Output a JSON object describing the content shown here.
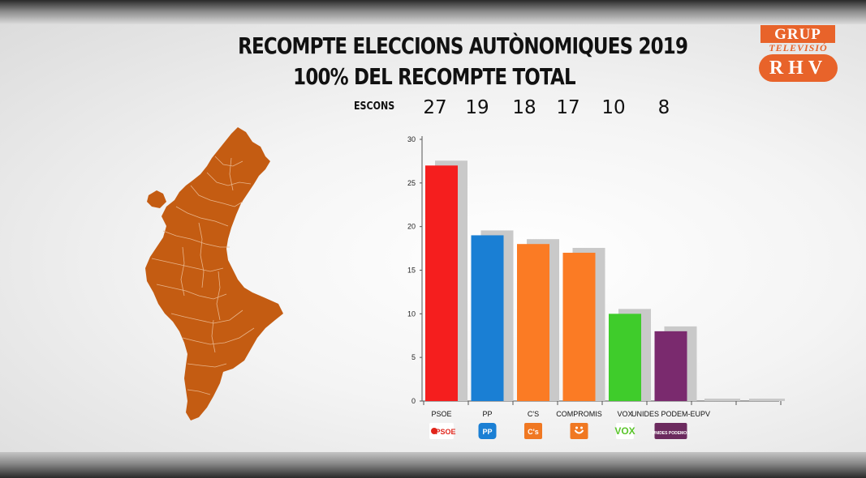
{
  "header": {
    "title_line1": "RECOMPTE ELECCIONS AUTÒNOMIQUES 2019",
    "title_line2": "100% DEL RECOMPTE TOTAL"
  },
  "logo": {
    "line1": "GRUP",
    "line2": "TELEVISIÓ",
    "line3": "RHV",
    "color": "#e8632a"
  },
  "seats_row": {
    "label": "ESCONS",
    "values": [
      "27",
      "19",
      "18",
      "17",
      "10",
      "8"
    ]
  },
  "map": {
    "region_color": "#c45c12",
    "border_color": "#e8b48a"
  },
  "chart_data": {
    "type": "bar",
    "categories": [
      "PSOE",
      "PP",
      "C'S",
      "COMPROMIS",
      "VOX",
      "UNIDES PODEM-EUPV"
    ],
    "values": [
      27,
      19,
      18,
      17,
      10,
      8
    ],
    "colors": [
      "#f51e1e",
      "#1a7fd4",
      "#fb7b24",
      "#fb7b24",
      "#3fcc2b",
      "#7a2a6e"
    ],
    "shadow_color": "#c9c9c9",
    "yticks": [
      0,
      5,
      10,
      15,
      20,
      25,
      30
    ],
    "ylim": [
      0,
      30
    ],
    "party_logos": [
      {
        "text": "PSOE",
        "icon": "psoe-rose-icon",
        "bg": "#ffffff",
        "fg": "#e1251b"
      },
      {
        "text": "PP",
        "icon": "pp-logo-icon",
        "bg": "#1a7fd4",
        "fg": "#ffffff"
      },
      {
        "text": "C's",
        "icon": "cs-logo-icon",
        "bg": "#f07822",
        "fg": "#ffffff"
      },
      {
        "text": "",
        "icon": "compromis-logo-icon",
        "bg": "#f07822",
        "fg": "#ffffff"
      },
      {
        "text": "VOX",
        "icon": "vox-logo-icon",
        "bg": "#ffffff",
        "fg": "#5ac52b"
      },
      {
        "text": "UNIDES PODEMOS",
        "icon": "unides-podemos-logo-icon",
        "bg": "#6b2a5e",
        "fg": "#ffffff"
      }
    ]
  }
}
